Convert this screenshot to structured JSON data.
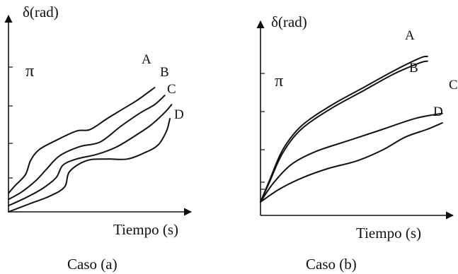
{
  "chart_data": [
    {
      "type": "line",
      "caption": "Caso (a)",
      "ylabel": "δ(rad)",
      "xlabel": "Tiempo (s)",
      "ytick_label": "π",
      "series": [
        {
          "name": "A",
          "points": [
            [
              0,
              0.12
            ],
            [
              0.04,
              0.17
            ],
            [
              0.1,
              0.24
            ],
            [
              0.13,
              0.33
            ],
            [
              0.18,
              0.4
            ],
            [
              0.28,
              0.46
            ],
            [
              0.4,
              0.52
            ],
            [
              0.48,
              0.53
            ],
            [
              0.58,
              0.6
            ],
            [
              0.67,
              0.66
            ],
            [
              0.76,
              0.72
            ],
            [
              0.86,
              0.8
            ]
          ]
        },
        {
          "name": "B",
          "points": [
            [
              0,
              0.08
            ],
            [
              0.08,
              0.13
            ],
            [
              0.16,
              0.2
            ],
            [
              0.22,
              0.27
            ],
            [
              0.3,
              0.36
            ],
            [
              0.42,
              0.42
            ],
            [
              0.54,
              0.45
            ],
            [
              0.66,
              0.55
            ],
            [
              0.78,
              0.64
            ],
            [
              0.86,
              0.69
            ],
            [
              0.92,
              0.75
            ]
          ]
        },
        {
          "name": "C",
          "points": [
            [
              0,
              0.04
            ],
            [
              0.1,
              0.09
            ],
            [
              0.2,
              0.15
            ],
            [
              0.28,
              0.22
            ],
            [
              0.32,
              0.3
            ],
            [
              0.4,
              0.34
            ],
            [
              0.52,
              0.37
            ],
            [
              0.64,
              0.42
            ],
            [
              0.76,
              0.5
            ],
            [
              0.84,
              0.56
            ],
            [
              0.92,
              0.64
            ],
            [
              0.96,
              0.69
            ]
          ]
        },
        {
          "name": "D",
          "points": [
            [
              0,
              0
            ],
            [
              0.12,
              0.05
            ],
            [
              0.24,
              0.1
            ],
            [
              0.33,
              0.16
            ],
            [
              0.36,
              0.26
            ],
            [
              0.46,
              0.33
            ],
            [
              0.58,
              0.34
            ],
            [
              0.7,
              0.34
            ],
            [
              0.8,
              0.38
            ],
            [
              0.88,
              0.43
            ],
            [
              0.93,
              0.52
            ],
            [
              0.95,
              0.6
            ]
          ]
        }
      ]
    },
    {
      "type": "line",
      "caption": "Caso (b)",
      "ylabel": "δ(rad)",
      "xlabel": "Tiempo (s)",
      "ytick_label": "π",
      "series": [
        {
          "name": "A",
          "points": [
            [
              0,
              0
            ],
            [
              0.05,
              0.14
            ],
            [
              0.12,
              0.33
            ],
            [
              0.22,
              0.48
            ],
            [
              0.38,
              0.61
            ],
            [
              0.55,
              0.72
            ],
            [
              0.72,
              0.83
            ],
            [
              0.86,
              0.91
            ],
            [
              0.9,
              0.92
            ]
          ]
        },
        {
          "name": "B",
          "points": [
            [
              0,
              0
            ],
            [
              0.05,
              0.13
            ],
            [
              0.12,
              0.31
            ],
            [
              0.22,
              0.46
            ],
            [
              0.38,
              0.59
            ],
            [
              0.55,
              0.7
            ],
            [
              0.72,
              0.81
            ],
            [
              0.86,
              0.88
            ],
            [
              0.9,
              0.89
            ]
          ]
        },
        {
          "name": "C",
          "points": [
            [
              0,
              0
            ],
            [
              0.07,
              0.12
            ],
            [
              0.17,
              0.24
            ],
            [
              0.3,
              0.32
            ],
            [
              0.48,
              0.39
            ],
            [
              0.66,
              0.46
            ],
            [
              0.84,
              0.53
            ],
            [
              0.98,
              0.56
            ]
          ]
        },
        {
          "name": "D",
          "points": [
            [
              0,
              0
            ],
            [
              0.1,
              0.08
            ],
            [
              0.22,
              0.15
            ],
            [
              0.36,
              0.21
            ],
            [
              0.52,
              0.26
            ],
            [
              0.66,
              0.33
            ],
            [
              0.78,
              0.41
            ],
            [
              0.9,
              0.46
            ],
            [
              0.98,
              0.5
            ]
          ]
        }
      ]
    }
  ]
}
